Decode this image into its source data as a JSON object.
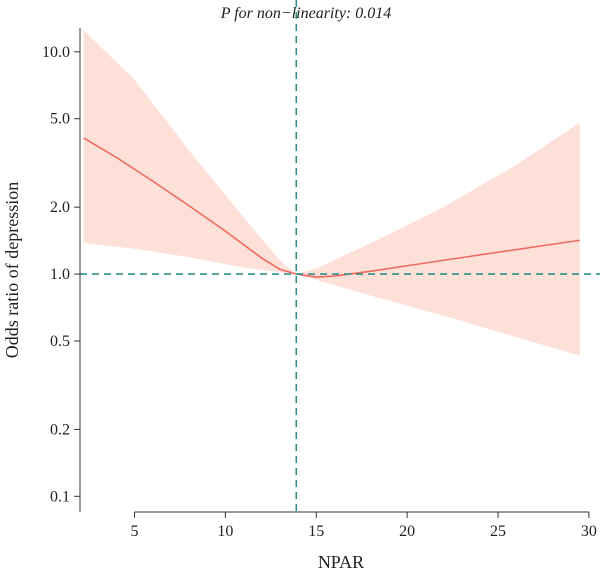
{
  "chart_data": {
    "type": "line",
    "title": "P for non−linearity: 0.014",
    "xlabel": "NPAR",
    "ylabel": "Odds ratio of depression",
    "x_ticks": [
      5,
      10,
      15,
      20,
      25,
      30
    ],
    "x_tick_labels": [
      "5",
      "10",
      "15",
      "20",
      "25",
      "30"
    ],
    "y_ticks": [
      0.1,
      0.2,
      0.5,
      1.0,
      2.0,
      5.0,
      10.0
    ],
    "y_tick_labels": [
      "0.1",
      "0.2",
      "0.5",
      "1.0",
      "2.0",
      "5.0",
      "10.0"
    ],
    "y_scale": "log",
    "xlim": [
      2,
      30.5
    ],
    "ylim": [
      0.085,
      12.8
    ],
    "reference_lines": {
      "x": 13.9,
      "y": 1.0
    },
    "series": [
      {
        "type": "line",
        "x": [
          2.2,
          4,
          6,
          8,
          10,
          12,
          13,
          13.9,
          15,
          16,
          18,
          20,
          24,
          29.5
        ],
        "y": [
          4.1,
          3.35,
          2.62,
          2.03,
          1.56,
          1.18,
          1.05,
          1.0,
          0.97,
          0.98,
          1.03,
          1.09,
          1.22,
          1.42
        ]
      },
      {
        "type": "band",
        "x": [
          2.2,
          5,
          8,
          11,
          13,
          13.9,
          15,
          18,
          22,
          26,
          29.5
        ],
        "lower": [
          1.38,
          1.3,
          1.19,
          1.07,
          1.02,
          1.0,
          0.94,
          0.8,
          0.65,
          0.52,
          0.43
        ],
        "upper": [
          12.5,
          7.5,
          3.6,
          1.8,
          1.15,
          1.0,
          1.06,
          1.38,
          2.0,
          3.1,
          4.8
        ]
      }
    ],
    "colors": {
      "line": "#ee6b62",
      "band": "#fde0d8",
      "reference": "#2f8f8a",
      "axis": "#333333"
    }
  }
}
